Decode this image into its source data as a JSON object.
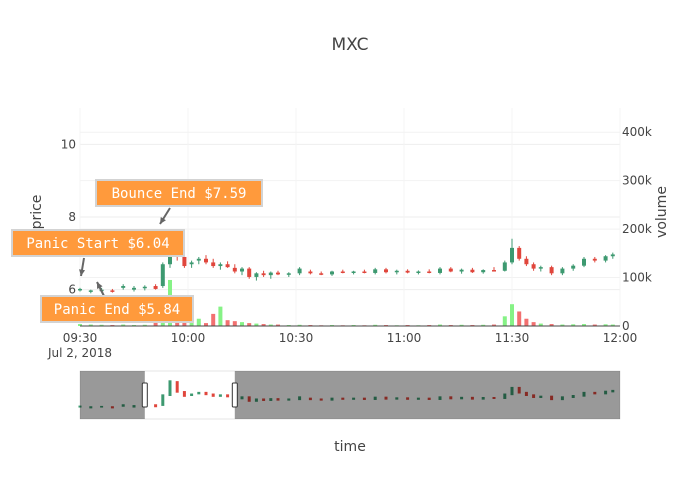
{
  "chart_data": {
    "type": "candlestick",
    "title": "MXC",
    "xlabel": "time",
    "ylabel_left": "price",
    "ylabel_right": "volume",
    "date_label": "Jul 2, 2018",
    "x_range": [
      "09:30",
      "12:00"
    ],
    "x_ticks": [
      "09:30",
      "10:00",
      "10:30",
      "11:00",
      "11:30",
      "12:00"
    ],
    "y_price_range": [
      5.0,
      11.0
    ],
    "y_price_ticks": [
      6,
      8,
      10
    ],
    "y_volume_range": [
      0,
      450000
    ],
    "y_volume_ticks": [
      "0",
      "100k",
      "200k",
      "300k",
      "400k"
    ],
    "colors": {
      "up": "#3D9970",
      "down": "#E0463C",
      "volume_up": "#86F286",
      "volume_down": "#F27070",
      "annotation_bg": "#FF9A3C",
      "annotation_border": "#D3D3D3"
    },
    "ohlc": [
      [
        "09:30",
        6.0,
        6.05,
        5.95,
        6.02
      ],
      [
        "09:33",
        5.95,
        6.0,
        5.9,
        5.98
      ],
      [
        "09:36",
        6.0,
        6.05,
        5.95,
        6.0
      ],
      [
        "09:39",
        5.98,
        6.02,
        5.92,
        5.95
      ],
      [
        "09:42",
        6.05,
        6.15,
        6.0,
        6.1
      ],
      [
        "09:45",
        6.0,
        6.1,
        5.95,
        6.05
      ],
      [
        "09:48",
        6.05,
        6.12,
        5.98,
        6.08
      ],
      [
        "09:51",
        6.1,
        6.15,
        6.0,
        6.02
      ],
      [
        "09:53",
        6.1,
        6.75,
        6.05,
        6.7
      ],
      [
        "09:55",
        6.7,
        7.65,
        6.6,
        7.55
      ],
      [
        "09:57",
        7.5,
        7.6,
        6.8,
        6.9
      ],
      [
        "09:59",
        6.9,
        6.95,
        6.6,
        6.65
      ],
      [
        "10:01",
        6.7,
        6.8,
        6.6,
        6.75
      ],
      [
        "10:03",
        6.8,
        6.9,
        6.7,
        6.85
      ],
      [
        "10:05",
        6.85,
        6.95,
        6.7,
        6.75
      ],
      [
        "10:07",
        6.75,
        6.85,
        6.6,
        6.65
      ],
      [
        "10:09",
        6.65,
        6.75,
        6.55,
        6.7
      ],
      [
        "10:11",
        6.7,
        6.78,
        6.6,
        6.62
      ],
      [
        "10:13",
        6.6,
        6.7,
        6.45,
        6.5
      ],
      [
        "10:15",
        6.5,
        6.62,
        6.4,
        6.58
      ],
      [
        "10:17",
        6.58,
        6.62,
        6.3,
        6.35
      ],
      [
        "10:19",
        6.35,
        6.48,
        6.25,
        6.45
      ],
      [
        "10:21",
        6.45,
        6.52,
        6.35,
        6.4
      ],
      [
        "10:23",
        6.4,
        6.5,
        6.3,
        6.47
      ],
      [
        "10:25",
        6.47,
        6.52,
        6.4,
        6.42
      ],
      [
        "10:28",
        6.42,
        6.48,
        6.35,
        6.45
      ],
      [
        "10:31",
        6.45,
        6.62,
        6.4,
        6.58
      ],
      [
        "10:34",
        6.5,
        6.55,
        6.42,
        6.45
      ],
      [
        "10:37",
        6.45,
        6.5,
        6.4,
        6.42
      ],
      [
        "10:40",
        6.42,
        6.52,
        6.38,
        6.5
      ],
      [
        "10:43",
        6.5,
        6.55,
        6.45,
        6.47
      ],
      [
        "10:46",
        6.47,
        6.52,
        6.42,
        6.5
      ],
      [
        "10:49",
        6.5,
        6.55,
        6.45,
        6.46
      ],
      [
        "10:52",
        6.46,
        6.6,
        6.42,
        6.56
      ],
      [
        "10:55",
        6.56,
        6.6,
        6.45,
        6.48
      ],
      [
        "10:58",
        6.48,
        6.55,
        6.42,
        6.52
      ],
      [
        "11:01",
        6.52,
        6.56,
        6.45,
        6.47
      ],
      [
        "11:04",
        6.47,
        6.53,
        6.42,
        6.5
      ],
      [
        "11:07",
        6.5,
        6.56,
        6.45,
        6.46
      ],
      [
        "11:10",
        6.46,
        6.62,
        6.42,
        6.58
      ],
      [
        "11:13",
        6.58,
        6.62,
        6.48,
        6.5
      ],
      [
        "11:16",
        6.5,
        6.58,
        6.44,
        6.55
      ],
      [
        "11:19",
        6.55,
        6.6,
        6.46,
        6.48
      ],
      [
        "11:22",
        6.48,
        6.56,
        6.44,
        6.54
      ],
      [
        "11:25",
        6.54,
        6.62,
        6.5,
        6.52
      ],
      [
        "11:28",
        6.52,
        6.8,
        6.5,
        6.75
      ],
      [
        "11:30",
        6.75,
        7.4,
        6.7,
        7.15
      ],
      [
        "11:32",
        7.15,
        7.2,
        6.8,
        6.85
      ],
      [
        "11:34",
        6.85,
        6.92,
        6.65,
        6.7
      ],
      [
        "11:36",
        6.7,
        6.75,
        6.52,
        6.58
      ],
      [
        "11:38",
        6.58,
        6.66,
        6.5,
        6.62
      ],
      [
        "11:41",
        6.62,
        6.66,
        6.4,
        6.45
      ],
      [
        "11:44",
        6.45,
        6.62,
        6.4,
        6.58
      ],
      [
        "11:47",
        6.58,
        6.7,
        6.52,
        6.66
      ],
      [
        "11:50",
        6.66,
        6.9,
        6.62,
        6.85
      ],
      [
        "11:53",
        6.85,
        6.9,
        6.75,
        6.8
      ],
      [
        "11:56",
        6.8,
        6.95,
        6.75,
        6.92
      ],
      [
        "11:58",
        6.92,
        7.02,
        6.85,
        6.97
      ]
    ],
    "volume": [
      [
        "09:30",
        4000
      ],
      [
        "09:33",
        3000
      ],
      [
        "09:36",
        2500
      ],
      [
        "09:39",
        2000
      ],
      [
        "09:42",
        3000
      ],
      [
        "09:45",
        2000
      ],
      [
        "09:48",
        2500
      ],
      [
        "09:51",
        8000
      ],
      [
        "09:53",
        30000
      ],
      [
        "09:55",
        95000
      ],
      [
        "09:57",
        45000
      ],
      [
        "09:59",
        20000
      ],
      [
        "10:01",
        8000
      ],
      [
        "10:03",
        15000
      ],
      [
        "10:05",
        6000
      ],
      [
        "10:07",
        25000
      ],
      [
        "10:09",
        40000
      ],
      [
        "10:11",
        12000
      ],
      [
        "10:13",
        10000
      ],
      [
        "10:15",
        8000
      ],
      [
        "10:17",
        6000
      ],
      [
        "10:19",
        5000
      ],
      [
        "10:21",
        4000
      ],
      [
        "10:23",
        3000
      ],
      [
        "10:25",
        3000
      ],
      [
        "10:28",
        2000
      ],
      [
        "10:31",
        2500
      ],
      [
        "10:34",
        2000
      ],
      [
        "10:37",
        1500
      ],
      [
        "10:40",
        2000
      ],
      [
        "10:43",
        1500
      ],
      [
        "10:46",
        2000
      ],
      [
        "10:49",
        1500
      ],
      [
        "10:52",
        2500
      ],
      [
        "10:55",
        2000
      ],
      [
        "10:58",
        1500
      ],
      [
        "11:01",
        2000
      ],
      [
        "11:04",
        1500
      ],
      [
        "11:07",
        2000
      ],
      [
        "11:10",
        3000
      ],
      [
        "11:13",
        2000
      ],
      [
        "11:16",
        2500
      ],
      [
        "11:19",
        2000
      ],
      [
        "11:22",
        2500
      ],
      [
        "11:25",
        3000
      ],
      [
        "11:28",
        20000
      ],
      [
        "11:30",
        45000
      ],
      [
        "11:32",
        30000
      ],
      [
        "11:34",
        15000
      ],
      [
        "11:36",
        8000
      ],
      [
        "11:38",
        5000
      ],
      [
        "11:41",
        4000
      ],
      [
        "11:44",
        3000
      ],
      [
        "11:47",
        3500
      ],
      [
        "11:50",
        4000
      ],
      [
        "11:53",
        3000
      ],
      [
        "11:56",
        3500
      ],
      [
        "11:58",
        3000
      ]
    ],
    "annotations": [
      {
        "text": "Panic Start $6.04",
        "x": "09:30",
        "y": 6.04
      },
      {
        "text": "Panic End $5.84",
        "x": "09:38",
        "y": 5.84
      },
      {
        "text": "Bounce End $7.59",
        "x": "09:55",
        "y": 7.59
      }
    ],
    "rangeslider": {
      "visible": true,
      "selected": [
        "09:48",
        "10:13"
      ]
    }
  }
}
